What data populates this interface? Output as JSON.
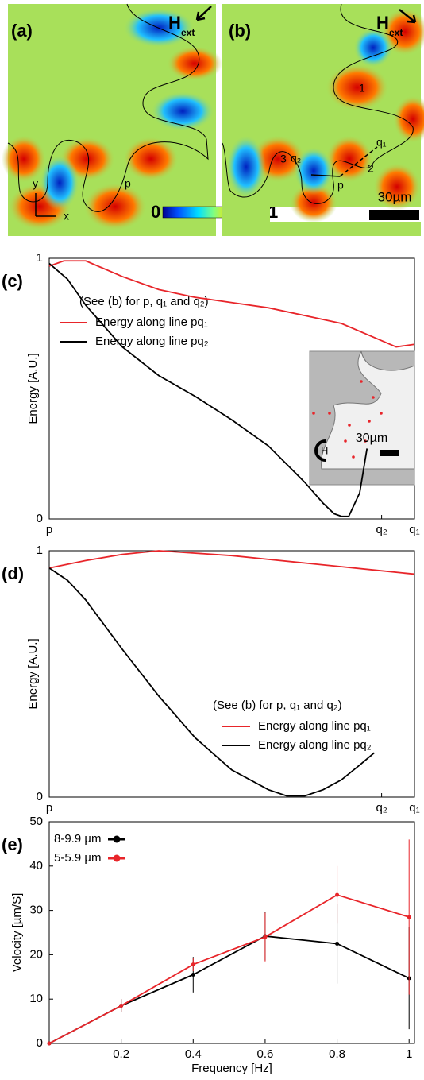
{
  "figure_a": {
    "label": "(a)",
    "field": "H",
    "field_sub": "ext",
    "axis_x": "x",
    "axis_y": "y",
    "point": "p",
    "colorbar_min": "0",
    "colorbar_max": "1"
  },
  "figure_b": {
    "label": "(b)",
    "field": "H",
    "field_sub": "ext",
    "point": "p",
    "q1": "q₁",
    "q2": "q₂",
    "region_1": "1",
    "region_2": "2",
    "region_3": "3",
    "scale_bar": "30µm"
  },
  "chart_data": [
    {
      "type": "line",
      "panel": "(c)",
      "ylabel": "Energy [A.U.]",
      "legend_title": "(See (b) for p, q₁ and q₂)",
      "legend": "lower left",
      "xlim": [
        0,
        1
      ],
      "ylim": [
        0,
        1
      ],
      "yticks": [
        0,
        1
      ],
      "xticks": [
        {
          "value": 0,
          "label": "p"
        },
        {
          "value": 0.91,
          "label": "q₂"
        },
        {
          "value": 1,
          "label": "q₁"
        }
      ],
      "series": [
        {
          "name": "Energy along line pq₁",
          "color": "#e8252a",
          "x": [
            0,
            0.04,
            0.1,
            0.2,
            0.3,
            0.4,
            0.5,
            0.6,
            0.7,
            0.8,
            0.9,
            0.95,
            1
          ],
          "values": [
            0.97,
            0.99,
            0.99,
            0.93,
            0.88,
            0.85,
            0.83,
            0.81,
            0.78,
            0.75,
            0.69,
            0.66,
            0.67
          ]
        },
        {
          "name": "Energy along line pq₂",
          "color": "#000000",
          "x": [
            0,
            0.05,
            0.1,
            0.2,
            0.3,
            0.4,
            0.5,
            0.6,
            0.7,
            0.75,
            0.78,
            0.8,
            0.82,
            0.85,
            0.87
          ],
          "values": [
            0.98,
            0.92,
            0.82,
            0.66,
            0.55,
            0.47,
            0.38,
            0.28,
            0.14,
            0.06,
            0.02,
            0.01,
            0.01,
            0.1,
            0.27
          ]
        }
      ],
      "inset": {
        "scale_bar": "30µm",
        "field": "H"
      }
    },
    {
      "type": "line",
      "panel": "(d)",
      "ylabel": "Energy [A.U.]",
      "legend_title": "(See (b) for p, q₁ and q₂)",
      "legend": "lower right",
      "xlim": [
        0,
        1
      ],
      "ylim": [
        0,
        1
      ],
      "yticks": [
        0,
        1
      ],
      "xticks": [
        {
          "value": 0,
          "label": "p"
        },
        {
          "value": 0.91,
          "label": "q₂"
        },
        {
          "value": 1,
          "label": "q₁"
        }
      ],
      "series": [
        {
          "name": "Energy along line pq₁",
          "color": "#e8252a",
          "x": [
            0,
            0.1,
            0.2,
            0.3,
            0.4,
            0.5,
            0.6,
            0.7,
            0.8,
            0.9,
            1
          ],
          "values": [
            0.93,
            0.96,
            0.985,
            1.0,
            0.99,
            0.98,
            0.965,
            0.95,
            0.935,
            0.92,
            0.905
          ]
        },
        {
          "name": "Energy along line pq₂",
          "color": "#000000",
          "x": [
            0,
            0.05,
            0.1,
            0.2,
            0.3,
            0.4,
            0.5,
            0.6,
            0.65,
            0.7,
            0.75,
            0.8,
            0.85,
            0.89
          ],
          "values": [
            0.93,
            0.88,
            0.8,
            0.6,
            0.41,
            0.24,
            0.11,
            0.03,
            0.005,
            0.005,
            0.03,
            0.07,
            0.13,
            0.18
          ]
        }
      ]
    },
    {
      "type": "errorline",
      "panel": "(e)",
      "xlabel": "Frequency [Hz]",
      "ylabel": "Velocity [µm/S]",
      "legend": "upper left",
      "xlim": [
        0,
        1.015
      ],
      "ylim": [
        0,
        50
      ],
      "xticks": [
        0.2,
        0.4,
        0.6,
        0.8,
        1
      ],
      "yticks": [
        0,
        10,
        20,
        30,
        40,
        50
      ],
      "series": [
        {
          "name": "8-9.9 µm",
          "color": "#000000",
          "x": [
            0,
            0.2,
            0.4,
            0.6,
            0.8,
            1
          ],
          "values": [
            0,
            8.5,
            15.5,
            24.2,
            22.5,
            14.7
          ],
          "errors": [
            0,
            1.5,
            4,
            5.5,
            9,
            11.5
          ]
        },
        {
          "name": "5-5.9 µm",
          "color": "#e8252a",
          "x": [
            0,
            0.2,
            0.4,
            0.6,
            0.8,
            1
          ],
          "values": [
            0,
            8.5,
            17.8,
            24,
            33.5,
            28.5
          ],
          "errors": [
            0,
            1.5,
            1.5,
            5.5,
            6.5,
            17.5
          ]
        }
      ]
    }
  ]
}
